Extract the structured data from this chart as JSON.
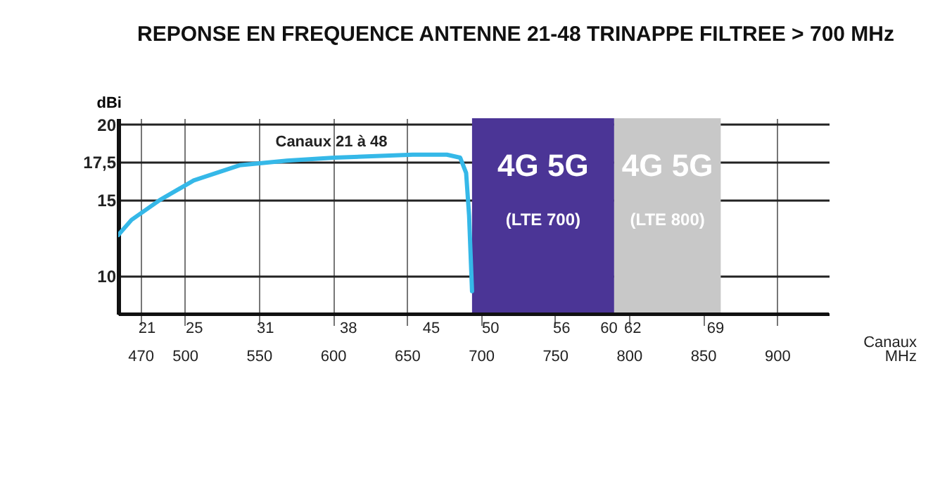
{
  "chart_data": {
    "type": "line",
    "title": "REPONSE EN FREQUENCE ANTENNE 21-48 TRINAPPE FILTREE > 700 MHz",
    "xlabel": "MHz",
    "x2label": "Canaux",
    "ylabel": "dBi",
    "series": [
      {
        "color": "#35b8e8",
        "x": [
          455,
          464,
          483,
          506,
          537,
          569,
          601,
          654,
          677,
          686,
          690,
          692,
          693,
          694
        ],
        "values": [
          12.7,
          13.7,
          15.0,
          16.3,
          17.3,
          17.6,
          17.8,
          18.0,
          18.0,
          17.8,
          16.8,
          14.0,
          11.5,
          9.0
        ]
      }
    ],
    "xlim": [
      455,
      935
    ],
    "xticks": [
      470,
      500,
      550,
      600,
      650,
      700,
      750,
      800,
      850,
      900
    ],
    "x2lim": [
      18.625,
      78.625
    ],
    "x2ticks": [
      21,
      25,
      31,
      38,
      45,
      50,
      56,
      60,
      62,
      69
    ],
    "ylim": [
      7.5,
      20.4
    ],
    "yticks": [
      10,
      15,
      {
        "value": 17.5,
        "label": "17,5"
      },
      20
    ],
    "grid": true,
    "bands": [
      {
        "axis": "x",
        "from": 694,
        "to": 790,
        "label": "4G 5G\n(LTE 700)",
        "color": "#4b3596"
      },
      {
        "axis": "x",
        "from": 790,
        "to": 862,
        "label": "4G 5G\n(LTE 800)",
        "color": "#c8c8c8"
      }
    ],
    "annotations": [
      "Canaux 21 à 48"
    ]
  }
}
